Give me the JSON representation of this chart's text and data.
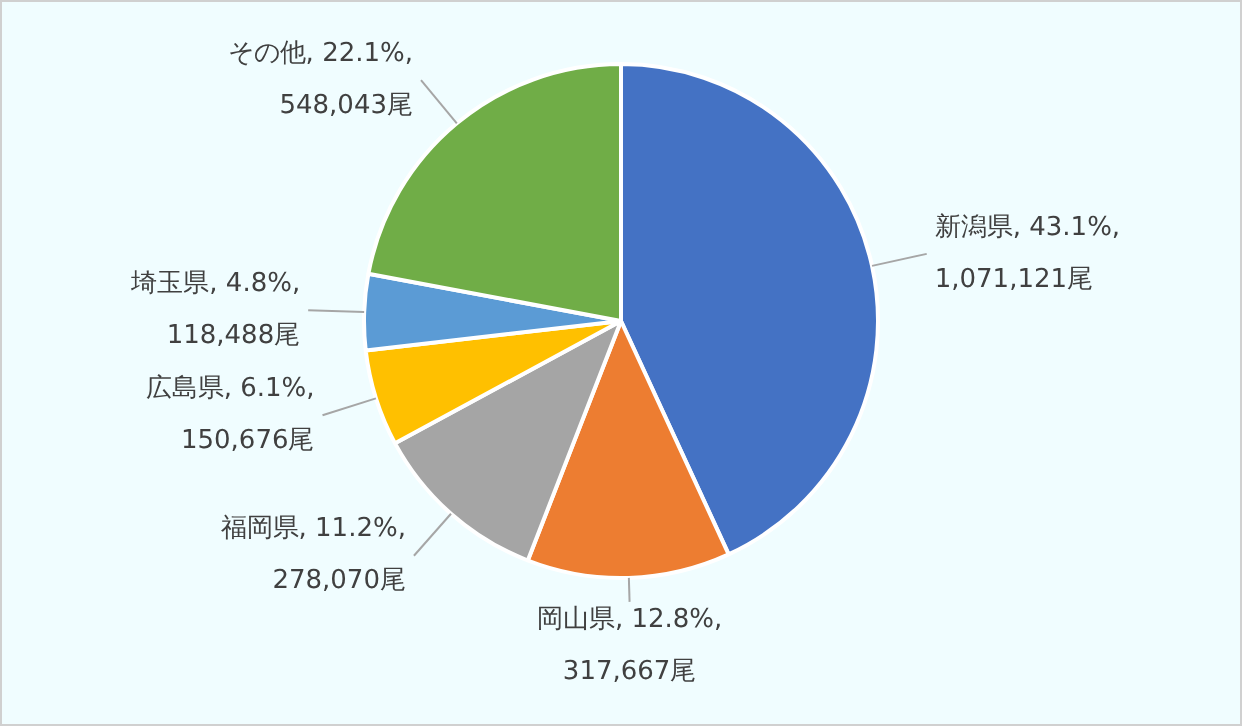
{
  "chart_data": {
    "type": "pie",
    "categories": [
      "新潟県",
      "岡山県",
      "福岡県",
      "広島県",
      "埼玉県",
      "その他"
    ],
    "values": [
      1071121,
      317667,
      278070,
      150676,
      118488,
      548043
    ],
    "colors": [
      "#4472c4",
      "#ed7d31",
      "#a5a5a5",
      "#ffc000",
      "#5b9bd5",
      "#70ad47"
    ],
    "value_labels": [
      ", 43.1%,\n1,071,121尾",
      ", 12.8%,\n317,667尾",
      ", 11.2%,\n278,070尾",
      ", 6.1%,\n150,676尾",
      ", 4.8%,\n118,488尾",
      ", 22.1%,\n548,043尾"
    ],
    "legend": false
  }
}
